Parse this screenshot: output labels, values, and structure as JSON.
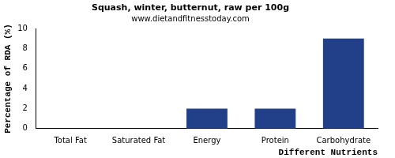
{
  "chart_data": {
    "type": "bar",
    "title": "Squash, winter, butternut, raw per 100g",
    "subtitle": "www.dietandfitnesstoday.com",
    "x_label": "Different Nutrients",
    "y_label": "Percentage of RDA (%)",
    "categories": [
      "Total Fat",
      "Saturated Fat",
      "Energy",
      "Protein",
      "Carbohydrate"
    ],
    "values": [
      0,
      0,
      2,
      2,
      9
    ],
    "color": "#22408a",
    "ylim": [
      0,
      10
    ],
    "yticks": [
      0,
      2,
      4,
      6,
      8,
      10
    ],
    "grid": false
  }
}
